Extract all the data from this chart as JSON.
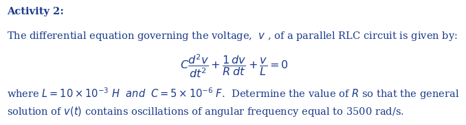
{
  "background_color": "#ffffff",
  "text_color": "#1a3a8c",
  "title_text": "Activity 2:",
  "line1": "The differential equation governing the voltage,  $v$ , of a parallel RLC circuit is given by:",
  "equation": "$C \\dfrac{d^2v}{dt^2} + \\dfrac{1}{R}\\dfrac{dv}{dt} + \\dfrac{v}{L} = 0$",
  "line3a": "where $L = 10 \\times 10^{-3}$ $H$  $\\mathit{and}$  $C = 5 \\times 10^{-6}$ $F$.  Determine the value of $R$ so that the general",
  "line3b": "solution of $v(t)$ contains oscillations of angular frequency equal to 3500 rad/s.",
  "fontsize_title": 10.5,
  "fontsize_body": 10.5,
  "fontsize_eq": 11.5
}
